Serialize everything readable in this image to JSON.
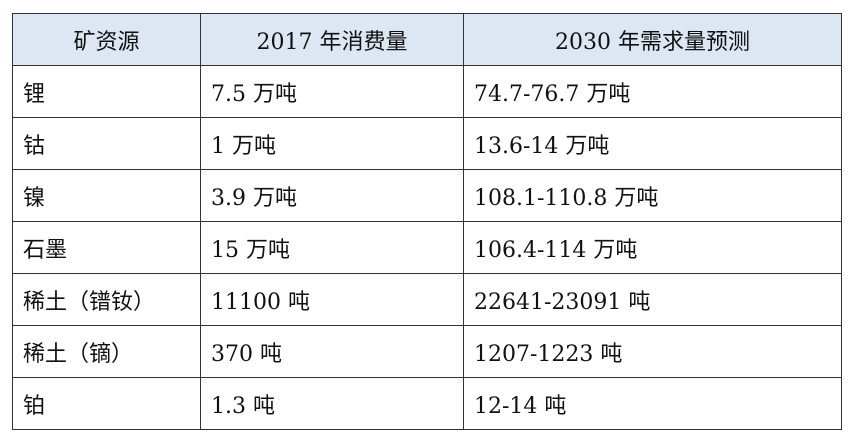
{
  "table": {
    "header": [
      "矿资源",
      "2017 年消费量",
      "2030 年需求量预测"
    ],
    "rows": [
      [
        "锂",
        "7.5 万吨",
        "74.7-76.7 万吨"
      ],
      [
        "钴",
        "1 万吨",
        "13.6-14 万吨"
      ],
      [
        "镍",
        "3.9 万吨",
        "108.1-110.8 万吨"
      ],
      [
        "石墨",
        "15 万吨",
        "106.4-114 万吨"
      ],
      [
        "稀土（镨钕）",
        "11100 吨",
        "22641-23091 吨"
      ],
      [
        "稀土（镝）",
        "370 吨",
        "1207-1223 吨"
      ],
      [
        "铂",
        "1.3 吨",
        "12-14 吨"
      ]
    ]
  }
}
